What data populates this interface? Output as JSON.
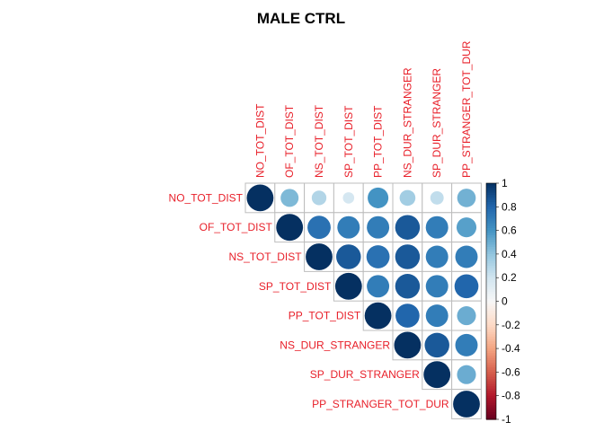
{
  "chart_data": {
    "type": "heatmap",
    "subtype": "correlation-matrix-upper",
    "title": "MALE CTRL",
    "variables": [
      "NO_TOT_DIST",
      "OF_TOT_DIST",
      "NS_TOT_DIST",
      "SP_TOT_DIST",
      "PP_TOT_DIST",
      "NS_DUR_STRANGER",
      "SP_DUR_STRANGER",
      "PP_STRANGER_TOT_DUR"
    ],
    "matrix": [
      [
        1.0,
        0.45,
        0.3,
        0.18,
        0.6,
        0.35,
        0.25,
        0.48
      ],
      [
        null,
        1.0,
        0.75,
        0.7,
        0.7,
        0.85,
        0.7,
        0.55
      ],
      [
        null,
        null,
        1.0,
        0.85,
        0.75,
        0.85,
        0.7,
        0.7
      ],
      [
        null,
        null,
        null,
        1.0,
        0.7,
        0.85,
        0.7,
        0.8
      ],
      [
        null,
        null,
        null,
        null,
        1.0,
        0.8,
        0.7,
        0.5
      ],
      [
        null,
        null,
        null,
        null,
        null,
        1.0,
        0.85,
        0.7
      ],
      [
        null,
        null,
        null,
        null,
        null,
        null,
        1.0,
        0.5
      ],
      [
        null,
        null,
        null,
        null,
        null,
        null,
        null,
        1.0
      ]
    ],
    "legend": {
      "ticks": [
        "1",
        "0.8",
        "0.6",
        "0.4",
        "0.2",
        "0",
        "-0.2",
        "-0.4",
        "-0.6",
        "-0.8",
        "-1"
      ],
      "range": [
        -1,
        1
      ],
      "placement": "right"
    },
    "glyph": "circle",
    "grid": true
  },
  "colors": {
    "label_color": "#e8202a",
    "grid_color": "#bdbdbd",
    "strong_positive": "#053061",
    "neutral": "#f7f7f7",
    "strong_negative": "#67001f"
  }
}
